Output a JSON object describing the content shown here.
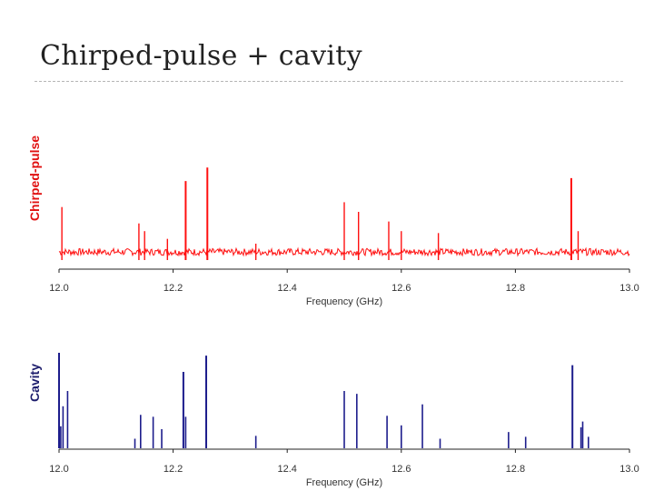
{
  "slide": {
    "title": "Chirped-pulse + cavity"
  },
  "chart_data": [
    {
      "type": "line",
      "ylabel": "Chirped-pulse",
      "xlabel": "Frequency (GHz)",
      "xlim": [
        12.0,
        13.0
      ],
      "ylim": [
        0,
        1
      ],
      "grid": false,
      "color": "#ff1010",
      "x_ticks": [
        "12.0",
        "12.2",
        "12.4",
        "12.6",
        "12.8",
        "13.0"
      ],
      "baseline_noise": 0.05,
      "peaks": [
        {
          "x": 12.005,
          "y": 0.55
        },
        {
          "x": 12.14,
          "y": 0.38
        },
        {
          "x": 12.15,
          "y": 0.3
        },
        {
          "x": 12.19,
          "y": 0.22
        },
        {
          "x": 12.222,
          "y": 0.82
        },
        {
          "x": 12.26,
          "y": 0.96
        },
        {
          "x": 12.345,
          "y": 0.17
        },
        {
          "x": 12.5,
          "y": 0.6
        },
        {
          "x": 12.525,
          "y": 0.5
        },
        {
          "x": 12.578,
          "y": 0.4
        },
        {
          "x": 12.6,
          "y": 0.3
        },
        {
          "x": 12.665,
          "y": 0.28
        },
        {
          "x": 12.898,
          "y": 0.85
        },
        {
          "x": 12.91,
          "y": 0.3
        }
      ]
    },
    {
      "type": "bar",
      "ylabel": "Cavity",
      "xlabel": "Frequency (GHz)",
      "xlim": [
        12.0,
        13.0
      ],
      "ylim": [
        0,
        1
      ],
      "grid": false,
      "color": "#1c1c8c",
      "x_ticks": [
        "12.0",
        "12.2",
        "12.4",
        "12.6",
        "12.8",
        "13.0"
      ],
      "lines": [
        {
          "x": 12.0,
          "y": 1.0
        },
        {
          "x": 12.003,
          "y": 0.23
        },
        {
          "x": 12.007,
          "y": 0.44
        },
        {
          "x": 12.015,
          "y": 0.6
        },
        {
          "x": 12.133,
          "y": 0.1
        },
        {
          "x": 12.143,
          "y": 0.35
        },
        {
          "x": 12.165,
          "y": 0.33
        },
        {
          "x": 12.18,
          "y": 0.2
        },
        {
          "x": 12.218,
          "y": 0.8
        },
        {
          "x": 12.222,
          "y": 0.33
        },
        {
          "x": 12.258,
          "y": 0.97
        },
        {
          "x": 12.345,
          "y": 0.13
        },
        {
          "x": 12.5,
          "y": 0.6
        },
        {
          "x": 12.522,
          "y": 0.57
        },
        {
          "x": 12.575,
          "y": 0.34
        },
        {
          "x": 12.6,
          "y": 0.24
        },
        {
          "x": 12.637,
          "y": 0.46
        },
        {
          "x": 12.668,
          "y": 0.1
        },
        {
          "x": 12.788,
          "y": 0.17
        },
        {
          "x": 12.818,
          "y": 0.12
        },
        {
          "x": 12.9,
          "y": 0.87
        },
        {
          "x": 12.915,
          "y": 0.22
        },
        {
          "x": 12.918,
          "y": 0.28
        },
        {
          "x": 12.928,
          "y": 0.12
        }
      ]
    }
  ]
}
